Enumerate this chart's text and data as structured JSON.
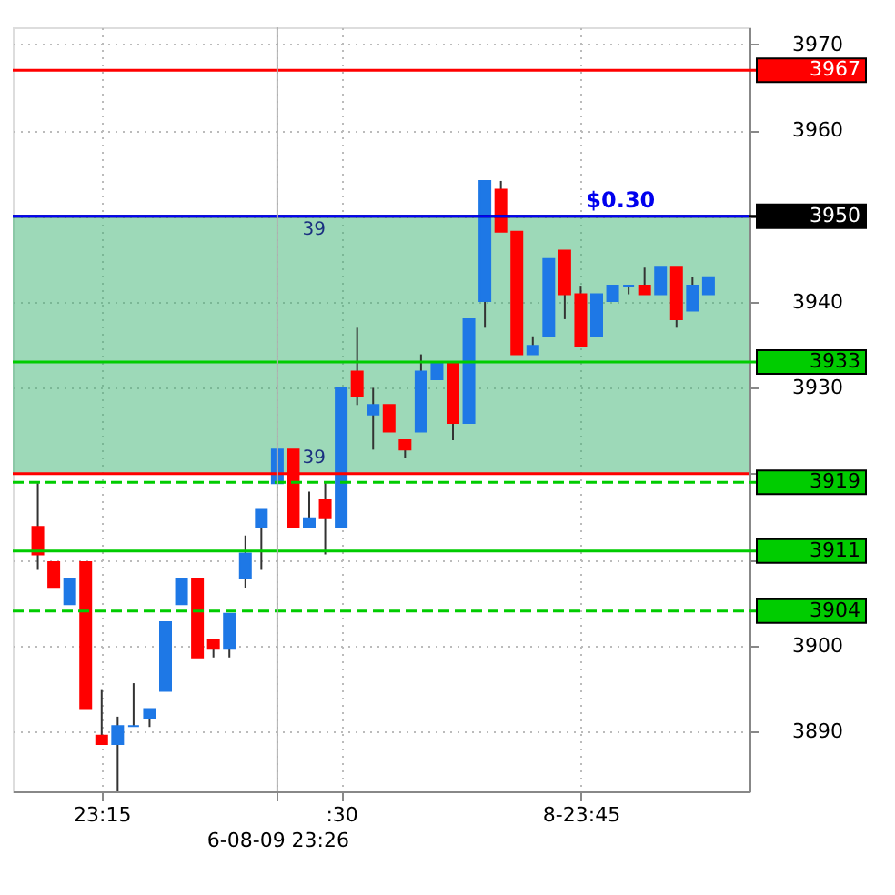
{
  "chart_data": {
    "type": "candlestick",
    "categories": [
      null,
      null,
      null,
      null,
      "23:15",
      null,
      null,
      null,
      null,
      null,
      null,
      null,
      null,
      null,
      null,
      "6-08-09 23:26",
      null,
      null,
      null,
      ":30",
      null,
      null,
      null,
      null,
      null,
      null,
      null,
      null,
      null,
      null,
      null,
      null,
      null,
      null,
      "8-23:45",
      null,
      null,
      null,
      null,
      null,
      null,
      null,
      null
    ],
    "ohlc": [
      [
        3913.8,
        3918.9,
        3908.8,
        3910.6
      ],
      [
        3909.7,
        3909.7,
        3906.7,
        3906.7
      ],
      [
        3904.8,
        3907.8,
        3904.8,
        3907.8
      ],
      [
        3909.7,
        3909.7,
        3892.6,
        3892.6
      ],
      [
        3889.5,
        3894.8,
        3888.5,
        3888.5
      ],
      [
        3888.5,
        3891.7,
        3883,
        3890.6
      ],
      [
        3890.6,
        3895.6,
        3890.6,
        3890.6
      ],
      [
        3891.5,
        3892.6,
        3890.5,
        3892.6
      ],
      [
        3894.7,
        3902.7,
        3894.7,
        3902.7
      ],
      [
        3904.8,
        3907.8,
        3904.8,
        3907.8
      ],
      [
        3907.8,
        3907.8,
        3898.6,
        3898.6
      ],
      [
        3900.6,
        3900.6,
        3898.6,
        3899.6
      ],
      [
        3899.6,
        3903.7,
        3898.6,
        3903.7
      ],
      [
        3907.8,
        3912.8,
        3906.7,
        3910.7
      ],
      [
        3913.8,
        3915.8,
        3908.8,
        3915.8
      ],
      [
        3918.9,
        3922.8,
        3918.9,
        3922.8
      ],
      [
        3922.8,
        3922.8,
        3913.8,
        3913.8
      ],
      [
        3913.8,
        3917.9,
        3913.8,
        3914.8
      ],
      [
        3916.9,
        3918.9,
        3910.6,
        3914.8
      ],
      [
        3913.8,
        3930.0,
        3913.8,
        3930.0
      ],
      [
        3931.9,
        3937.0,
        3928.0,
        3929.0
      ],
      [
        3926.9,
        3930.0,
        3922.8,
        3928.0
      ],
      [
        3928.0,
        3928.0,
        3924.9,
        3924.9
      ],
      [
        3923.9,
        3923.9,
        3921.8,
        3922.8
      ],
      [
        3924.9,
        3933.9,
        3924.9,
        3931.9
      ],
      [
        3931.0,
        3932.9,
        3931.0,
        3932.9
      ],
      [
        3932.9,
        3932.9,
        3923.9,
        3925.9
      ],
      [
        3925.9,
        3938.0,
        3925.9,
        3938.0
      ],
      [
        3940.1,
        3954.1,
        3937.0,
        3954.1
      ],
      [
        3953.1,
        3954.1,
        3948.2,
        3948.2
      ],
      [
        3948.2,
        3948.2,
        3933.9,
        3933.9
      ],
      [
        3933.9,
        3936.0,
        3933.9,
        3934.9
      ],
      [
        3936.0,
        3945.0,
        3936.0,
        3945.0
      ],
      [
        3946.0,
        3946.0,
        3938.0,
        3940.9
      ],
      [
        3940.9,
        3941.9,
        3934.9,
        3934.9
      ],
      [
        3936.0,
        3940.9,
        3936.0,
        3940.9
      ],
      [
        3940.1,
        3941.9,
        3940.1,
        3941.9
      ],
      [
        3941.9,
        3941.9,
        3940.9,
        3941.9
      ],
      [
        3941.9,
        3944.0,
        3940.9,
        3940.9
      ],
      [
        3940.9,
        3944.0,
        3940.9,
        3944.0
      ],
      [
        3944.0,
        3944.0,
        3937.0,
        3938.0
      ],
      [
        3939.0,
        3942.9,
        3939.0,
        3941.9
      ],
      [
        3940.9,
        3942.9,
        3940.9,
        3942.9
      ]
    ],
    "colors": [
      "#ff0000",
      "#ff0000",
      "#1e78e6",
      "#ff0000",
      "#ff0000",
      "#1e78e6",
      "#1e78e6",
      "#1e78e6",
      "#1e78e6",
      "#1e78e6",
      "#ff0000",
      "#ff0000",
      "#1e78e6",
      "#1e78e6",
      "#1e78e6",
      "#1e78e6",
      "#ff0000",
      "#1e78e6",
      "#ff0000",
      "#1e78e6",
      "#ff0000",
      "#1e78e6",
      "#ff0000",
      "#ff0000",
      "#1e78e6",
      "#1e78e6",
      "#ff0000",
      "#1e78e6",
      "#1e78e6",
      "#ff0000",
      "#ff0000",
      "#1e78e6",
      "#1e78e6",
      "#ff0000",
      "#ff0000",
      "#1e78e6",
      "#1e78e6",
      "#1e78e6",
      "#ff0000",
      "#1e78e6",
      "#ff0000",
      "#1e78e6",
      "#1e78e6"
    ],
    "ylim": [
      3883,
      3972
    ],
    "yticks": [
      3890,
      3900,
      {
        "value": 3910,
        "label": null
      },
      {
        "value": 3920,
        "label": null
      },
      3930,
      3940,
      {
        "value": 3950,
        "label": null
      },
      3960,
      3970
    ],
    "grid": true,
    "ref_lines": [
      {
        "axis": "y",
        "value": 3967,
        "label": "3967",
        "color": "#ff0000"
      },
      {
        "axis": "y",
        "value": 3950,
        "label": "3950",
        "color": "#000000"
      },
      {
        "axis": "y",
        "value": 3950,
        "label": null,
        "color": "#0000ff"
      },
      {
        "axis": "y",
        "value": 3933,
        "label": "3933",
        "color": "#00cc00"
      },
      {
        "axis": "y",
        "value": 3920,
        "label": null,
        "color": "#ff0000"
      },
      {
        "axis": "y",
        "value": 3919,
        "label": "3919",
        "color": "#00cc00",
        "line_style": "dashed"
      },
      {
        "axis": "y",
        "value": 3911,
        "label": "3911",
        "color": "#00cc00"
      },
      {
        "axis": "y",
        "value": 3904,
        "label": "3904",
        "color": "#00cc00",
        "line_style": "dashed"
      },
      {
        "axis": "x",
        "value": "6-08-09 23:26",
        "label": null,
        "color": "#b0b0b0"
      }
    ],
    "bands": [
      {
        "axis": "y",
        "from": 3920,
        "to": 3950,
        "label": null,
        "color": "#3cb371"
      }
    ],
    "annotations": [
      {
        "text": "$0.30",
        "y": 3950
      },
      {
        "text": "39",
        "y": 3950
      },
      {
        "text": "39",
        "y": 3920
      }
    ]
  }
}
